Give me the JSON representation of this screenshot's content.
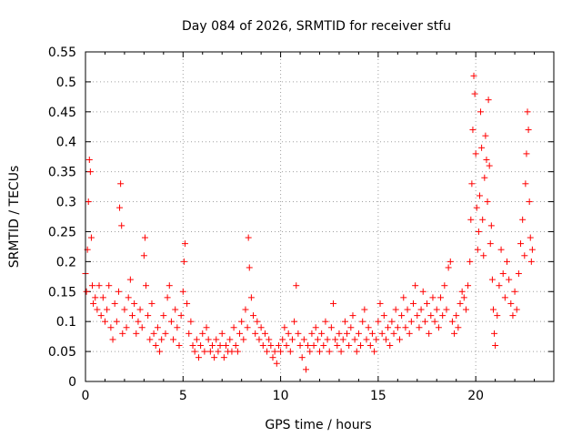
{
  "chart_data": {
    "type": "scatter",
    "title": "Day 084 of 2026, SRMTID for receiver stfu",
    "xlabel": "GPS time / hours",
    "ylabel": "SRMTID / TECUs",
    "xlim": [
      0,
      24
    ],
    "ylim": [
      0,
      0.55
    ],
    "x_ticks": [
      0,
      5,
      10,
      15,
      20
    ],
    "y_ticks": [
      0,
      0.05,
      0.1,
      0.15,
      0.2,
      0.25,
      0.3,
      0.35,
      0.4,
      0.45,
      0.5,
      0.55
    ],
    "x_tick_labels": [
      "0",
      "5",
      "10",
      "15",
      "20"
    ],
    "y_tick_labels": [
      "0",
      "0.05",
      "0.1",
      "0.15",
      "0.2",
      "0.25",
      "0.3",
      "0.35",
      "0.4",
      "0.45",
      "0.5",
      "0.55"
    ],
    "grid": true,
    "marker": "+",
    "series": [
      {
        "color": "#ff0000",
        "points": [
          [
            0.0,
            0.18
          ],
          [
            0.05,
            0.15
          ],
          [
            0.1,
            0.22
          ],
          [
            0.15,
            0.3
          ],
          [
            0.2,
            0.37
          ],
          [
            0.25,
            0.35
          ],
          [
            0.3,
            0.24
          ],
          [
            0.35,
            0.16
          ],
          [
            0.4,
            0.13
          ],
          [
            0.5,
            0.14
          ],
          [
            0.6,
            0.12
          ],
          [
            0.7,
            0.16
          ],
          [
            0.8,
            0.11
          ],
          [
            0.9,
            0.14
          ],
          [
            1.0,
            0.1
          ],
          [
            1.1,
            0.12
          ],
          [
            1.2,
            0.16
          ],
          [
            1.3,
            0.09
          ],
          [
            1.4,
            0.07
          ],
          [
            1.5,
            0.13
          ],
          [
            1.6,
            0.1
          ],
          [
            1.7,
            0.15
          ],
          [
            1.75,
            0.29
          ],
          [
            1.8,
            0.33
          ],
          [
            1.85,
            0.26
          ],
          [
            1.9,
            0.08
          ],
          [
            2.0,
            0.12
          ],
          [
            2.1,
            0.09
          ],
          [
            2.2,
            0.14
          ],
          [
            2.3,
            0.17
          ],
          [
            2.4,
            0.11
          ],
          [
            2.5,
            0.13
          ],
          [
            2.6,
            0.08
          ],
          [
            2.7,
            0.1
          ],
          [
            2.8,
            0.12
          ],
          [
            2.9,
            0.09
          ],
          [
            3.0,
            0.21
          ],
          [
            3.05,
            0.24
          ],
          [
            3.1,
            0.16
          ],
          [
            3.2,
            0.11
          ],
          [
            3.3,
            0.07
          ],
          [
            3.4,
            0.13
          ],
          [
            3.5,
            0.08
          ],
          [
            3.6,
            0.06
          ],
          [
            3.7,
            0.09
          ],
          [
            3.8,
            0.05
          ],
          [
            3.9,
            0.07
          ],
          [
            4.0,
            0.11
          ],
          [
            4.1,
            0.08
          ],
          [
            4.2,
            0.14
          ],
          [
            4.3,
            0.16
          ],
          [
            4.4,
            0.1
          ],
          [
            4.5,
            0.07
          ],
          [
            4.6,
            0.12
          ],
          [
            4.7,
            0.09
          ],
          [
            4.8,
            0.06
          ],
          [
            4.9,
            0.11
          ],
          [
            5.0,
            0.15
          ],
          [
            5.05,
            0.2
          ],
          [
            5.1,
            0.23
          ],
          [
            5.2,
            0.13
          ],
          [
            5.3,
            0.08
          ],
          [
            5.4,
            0.1
          ],
          [
            5.5,
            0.06
          ],
          [
            5.6,
            0.05
          ],
          [
            5.7,
            0.07
          ],
          [
            5.8,
            0.04
          ],
          [
            5.9,
            0.06
          ],
          [
            6.0,
            0.08
          ],
          [
            6.1,
            0.05
          ],
          [
            6.2,
            0.09
          ],
          [
            6.3,
            0.07
          ],
          [
            6.4,
            0.05
          ],
          [
            6.5,
            0.06
          ],
          [
            6.6,
            0.04
          ],
          [
            6.7,
            0.07
          ],
          [
            6.8,
            0.05
          ],
          [
            6.9,
            0.06
          ],
          [
            7.0,
            0.08
          ],
          [
            7.1,
            0.04
          ],
          [
            7.2,
            0.06
          ],
          [
            7.3,
            0.05
          ],
          [
            7.4,
            0.07
          ],
          [
            7.5,
            0.05
          ],
          [
            7.6,
            0.09
          ],
          [
            7.7,
            0.06
          ],
          [
            7.8,
            0.05
          ],
          [
            7.9,
            0.08
          ],
          [
            8.0,
            0.1
          ],
          [
            8.1,
            0.07
          ],
          [
            8.2,
            0.12
          ],
          [
            8.3,
            0.09
          ],
          [
            8.35,
            0.24
          ],
          [
            8.4,
            0.19
          ],
          [
            8.5,
            0.14
          ],
          [
            8.6,
            0.11
          ],
          [
            8.7,
            0.08
          ],
          [
            8.8,
            0.1
          ],
          [
            8.9,
            0.07
          ],
          [
            9.0,
            0.09
          ],
          [
            9.1,
            0.06
          ],
          [
            9.2,
            0.08
          ],
          [
            9.3,
            0.05
          ],
          [
            9.4,
            0.07
          ],
          [
            9.5,
            0.06
          ],
          [
            9.6,
            0.04
          ],
          [
            9.7,
            0.05
          ],
          [
            9.8,
            0.03
          ],
          [
            9.9,
            0.06
          ],
          [
            10.0,
            0.05
          ],
          [
            10.1,
            0.07
          ],
          [
            10.2,
            0.09
          ],
          [
            10.3,
            0.06
          ],
          [
            10.4,
            0.08
          ],
          [
            10.5,
            0.05
          ],
          [
            10.6,
            0.07
          ],
          [
            10.7,
            0.1
          ],
          [
            10.8,
            0.16
          ],
          [
            10.9,
            0.08
          ],
          [
            11.0,
            0.06
          ],
          [
            11.1,
            0.04
          ],
          [
            11.2,
            0.07
          ],
          [
            11.3,
            0.02
          ],
          [
            11.4,
            0.06
          ],
          [
            11.5,
            0.05
          ],
          [
            11.6,
            0.08
          ],
          [
            11.7,
            0.06
          ],
          [
            11.8,
            0.09
          ],
          [
            11.9,
            0.07
          ],
          [
            12.0,
            0.05
          ],
          [
            12.1,
            0.08
          ],
          [
            12.2,
            0.06
          ],
          [
            12.3,
            0.1
          ],
          [
            12.4,
            0.07
          ],
          [
            12.5,
            0.05
          ],
          [
            12.6,
            0.09
          ],
          [
            12.7,
            0.13
          ],
          [
            12.8,
            0.07
          ],
          [
            12.9,
            0.06
          ],
          [
            13.0,
            0.08
          ],
          [
            13.1,
            0.05
          ],
          [
            13.2,
            0.07
          ],
          [
            13.3,
            0.1
          ],
          [
            13.4,
            0.08
          ],
          [
            13.5,
            0.06
          ],
          [
            13.6,
            0.09
          ],
          [
            13.7,
            0.11
          ],
          [
            13.8,
            0.07
          ],
          [
            13.9,
            0.05
          ],
          [
            14.0,
            0.08
          ],
          [
            14.1,
            0.06
          ],
          [
            14.2,
            0.1
          ],
          [
            14.3,
            0.12
          ],
          [
            14.4,
            0.07
          ],
          [
            14.5,
            0.09
          ],
          [
            14.6,
            0.06
          ],
          [
            14.7,
            0.08
          ],
          [
            14.8,
            0.05
          ],
          [
            14.9,
            0.07
          ],
          [
            15.0,
            0.1
          ],
          [
            15.1,
            0.13
          ],
          [
            15.2,
            0.08
          ],
          [
            15.3,
            0.11
          ],
          [
            15.4,
            0.07
          ],
          [
            15.5,
            0.09
          ],
          [
            15.6,
            0.06
          ],
          [
            15.7,
            0.1
          ],
          [
            15.8,
            0.08
          ],
          [
            15.9,
            0.12
          ],
          [
            16.0,
            0.09
          ],
          [
            16.1,
            0.07
          ],
          [
            16.2,
            0.11
          ],
          [
            16.3,
            0.14
          ],
          [
            16.4,
            0.09
          ],
          [
            16.5,
            0.12
          ],
          [
            16.6,
            0.08
          ],
          [
            16.7,
            0.1
          ],
          [
            16.8,
            0.13
          ],
          [
            16.9,
            0.16
          ],
          [
            17.0,
            0.11
          ],
          [
            17.1,
            0.09
          ],
          [
            17.2,
            0.12
          ],
          [
            17.3,
            0.15
          ],
          [
            17.4,
            0.1
          ],
          [
            17.5,
            0.13
          ],
          [
            17.6,
            0.08
          ],
          [
            17.7,
            0.11
          ],
          [
            17.8,
            0.14
          ],
          [
            17.9,
            0.1
          ],
          [
            18.0,
            0.12
          ],
          [
            18.1,
            0.09
          ],
          [
            18.2,
            0.14
          ],
          [
            18.3,
            0.11
          ],
          [
            18.4,
            0.16
          ],
          [
            18.5,
            0.12
          ],
          [
            18.6,
            0.19
          ],
          [
            18.7,
            0.2
          ],
          [
            18.8,
            0.1
          ],
          [
            18.9,
            0.08
          ],
          [
            19.0,
            0.11
          ],
          [
            19.1,
            0.09
          ],
          [
            19.2,
            0.13
          ],
          [
            19.3,
            0.15
          ],
          [
            19.4,
            0.14
          ],
          [
            19.5,
            0.12
          ],
          [
            19.6,
            0.16
          ],
          [
            19.7,
            0.2
          ],
          [
            19.75,
            0.27
          ],
          [
            19.8,
            0.33
          ],
          [
            19.85,
            0.42
          ],
          [
            19.9,
            0.51
          ],
          [
            19.95,
            0.48
          ],
          [
            20.0,
            0.38
          ],
          [
            20.05,
            0.29
          ],
          [
            20.1,
            0.22
          ],
          [
            20.15,
            0.25
          ],
          [
            20.2,
            0.31
          ],
          [
            20.25,
            0.45
          ],
          [
            20.3,
            0.39
          ],
          [
            20.35,
            0.27
          ],
          [
            20.4,
            0.21
          ],
          [
            20.45,
            0.34
          ],
          [
            20.5,
            0.41
          ],
          [
            20.55,
            0.37
          ],
          [
            20.6,
            0.3
          ],
          [
            20.65,
            0.47
          ],
          [
            20.7,
            0.36
          ],
          [
            20.75,
            0.23
          ],
          [
            20.8,
            0.26
          ],
          [
            20.85,
            0.17
          ],
          [
            20.9,
            0.12
          ],
          [
            20.95,
            0.08
          ],
          [
            21.0,
            0.06
          ],
          [
            21.1,
            0.11
          ],
          [
            21.2,
            0.16
          ],
          [
            21.3,
            0.22
          ],
          [
            21.4,
            0.18
          ],
          [
            21.5,
            0.14
          ],
          [
            21.6,
            0.2
          ],
          [
            21.7,
            0.17
          ],
          [
            21.8,
            0.13
          ],
          [
            21.9,
            0.11
          ],
          [
            22.0,
            0.15
          ],
          [
            22.1,
            0.12
          ],
          [
            22.2,
            0.18
          ],
          [
            22.3,
            0.23
          ],
          [
            22.4,
            0.27
          ],
          [
            22.5,
            0.21
          ],
          [
            22.55,
            0.33
          ],
          [
            22.6,
            0.38
          ],
          [
            22.65,
            0.45
          ],
          [
            22.7,
            0.42
          ],
          [
            22.75,
            0.3
          ],
          [
            22.8,
            0.24
          ],
          [
            22.85,
            0.2
          ],
          [
            22.9,
            0.22
          ]
        ]
      }
    ]
  }
}
